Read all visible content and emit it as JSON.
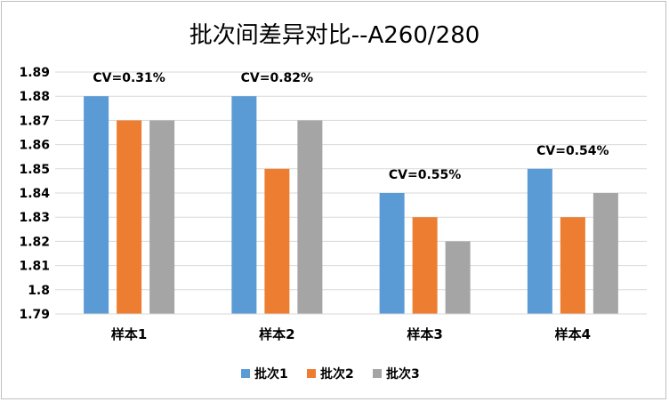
{
  "chart_data": {
    "type": "bar",
    "title": "批次间差异对比--A260/280",
    "xlabel": "",
    "ylabel": "",
    "categories": [
      "样本1",
      "样本2",
      "样本3",
      "样本4"
    ],
    "series": [
      {
        "name": "批次1",
        "color": "#5b9bd5",
        "values": [
          1.88,
          1.88,
          1.84,
          1.85
        ]
      },
      {
        "name": "批次2",
        "color": "#ed7d31",
        "values": [
          1.87,
          1.85,
          1.83,
          1.83
        ]
      },
      {
        "name": "批次3",
        "color": "#a5a5a5",
        "values": [
          1.87,
          1.87,
          1.82,
          1.84
        ]
      }
    ],
    "ylim": [
      1.79,
      1.89
    ],
    "yticks": [
      "1.89",
      "1.88",
      "1.87",
      "1.86",
      "1.85",
      "1.84",
      "1.83",
      "1.82",
      "1.81",
      "1.8",
      "1.79"
    ],
    "annotations": [
      "CV=0.31%",
      "CV=0.82%",
      "CV=0.55%",
      "CV=0.54%"
    ],
    "grid": true,
    "legend_position": "bottom"
  }
}
